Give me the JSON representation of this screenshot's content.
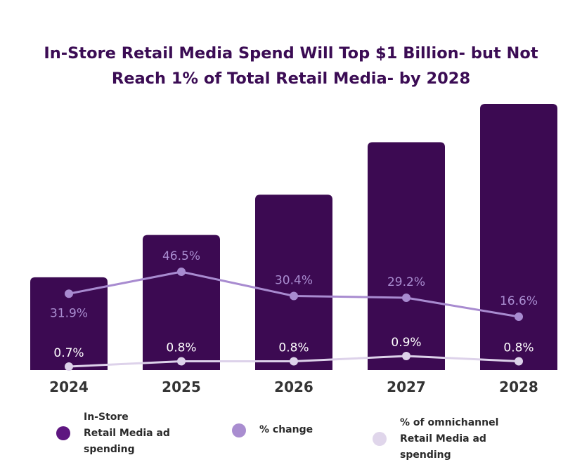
{
  "title_line1": "In-Store Retail Media Spend Will Top $1 Billion- but Not",
  "title_line2": "Reach 1% of Total Retail Media- by 2028",
  "colors": {
    "title": "#3b0c54",
    "bar": "#3c0a52",
    "change_line": "#a88bd0",
    "share_line": "#ddd2ea",
    "change_label": "#a98dd0",
    "share_label": "#ffffff",
    "axis_text": "#333333"
  },
  "chart_data": {
    "type": "bar",
    "categories": [
      "2024",
      "2025",
      "2026",
      "2027",
      "2028"
    ],
    "bars": {
      "values": [
        0.46,
        0.67,
        0.87,
        1.13,
        1.32
      ],
      "ylim": [
        0,
        1.32
      ]
    },
    "lines": [
      {
        "name": "% change",
        "values": [
          31.9,
          46.5,
          30.4,
          29.2,
          16.6
        ],
        "labels": [
          "31.9%",
          "46.5%",
          "30.4%",
          "29.2%",
          "16.6%"
        ]
      },
      {
        "name": "% of omnichannel Retail Media ad spending",
        "values": [
          0.7,
          0.8,
          0.8,
          0.9,
          0.8
        ],
        "labels": [
          "0.7%",
          "0.8%",
          "0.8%",
          "0.9%",
          "0.8%"
        ]
      }
    ],
    "grid": false,
    "legend_position": "bottom"
  },
  "legend": [
    {
      "label": "In-Store\nRetail Media ad\nspending",
      "color": "#5e1680"
    },
    {
      "label": "% change",
      "color": "#a98dd0"
    },
    {
      "label": "% of omnichannel\nRetail Media ad\nspending",
      "color": "#e0d6eb"
    }
  ]
}
